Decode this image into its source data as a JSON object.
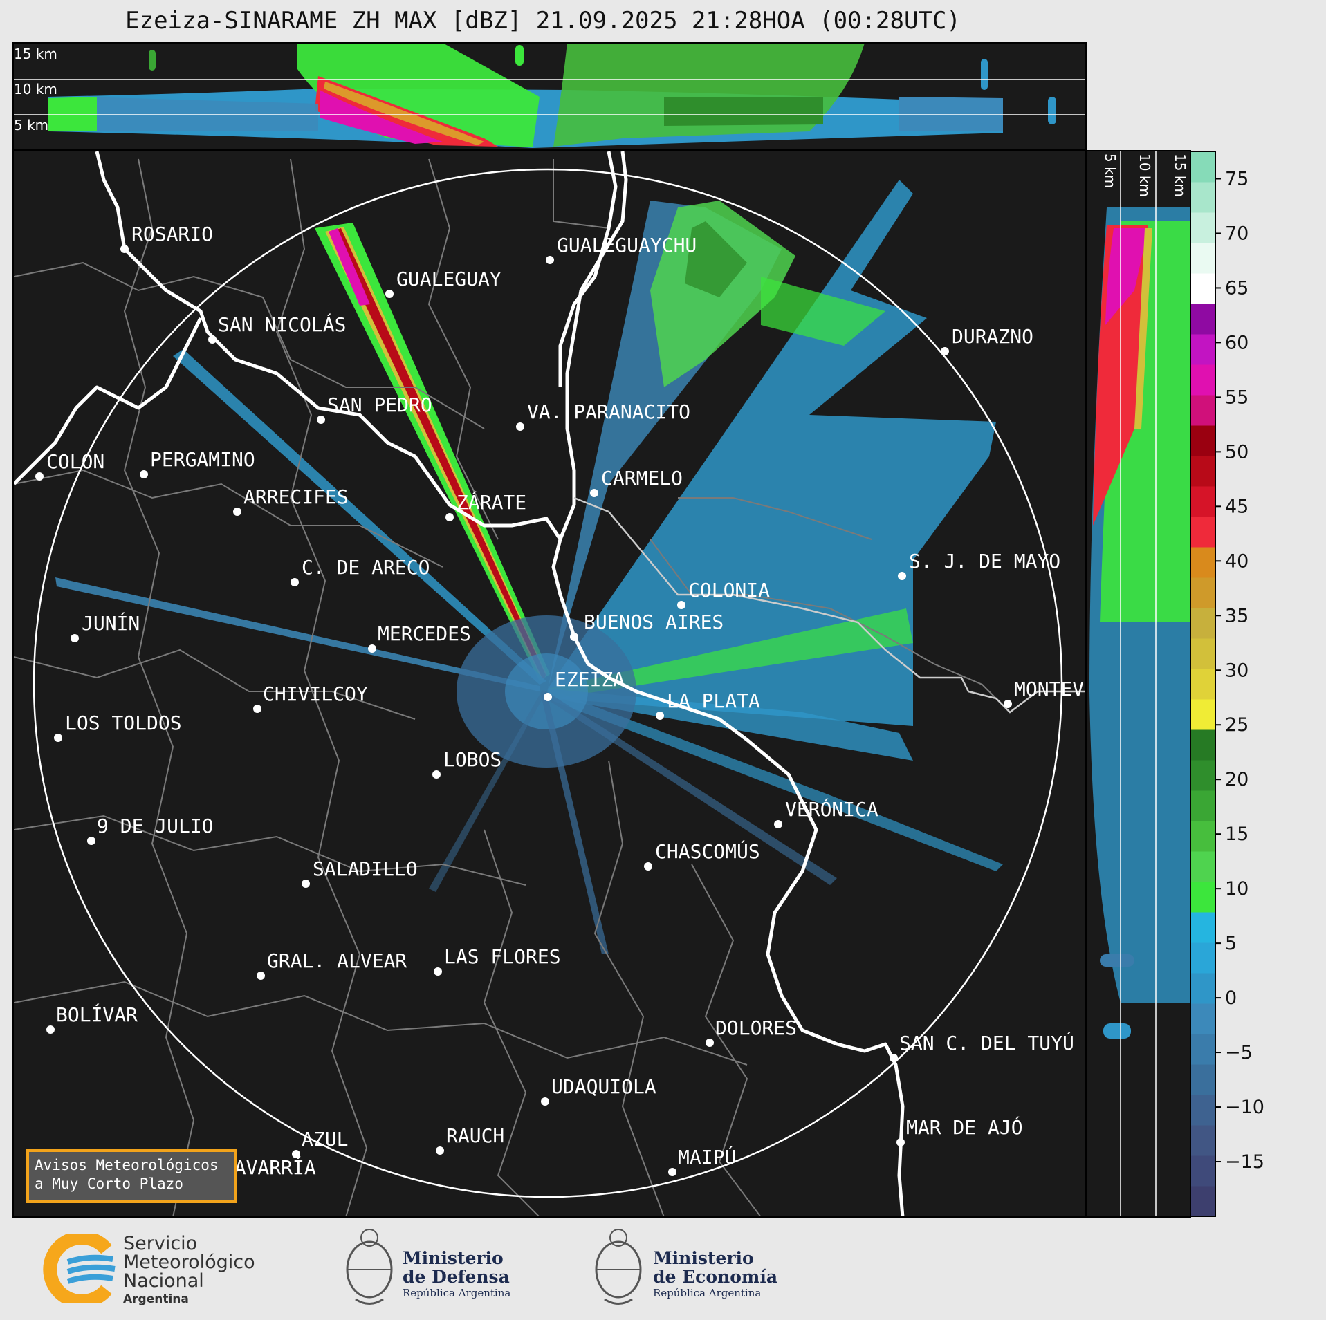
{
  "title": "Ezeiza-SINARAME ZH MAX [dBZ] 21.09.2025 21:28HOA (00:28UTC)",
  "top_panel": {
    "labels": [
      "15 km",
      "10 km",
      "5 km"
    ]
  },
  "side_panel": {
    "labels": [
      "5 km",
      "10 km",
      "15 km"
    ]
  },
  "colorbar": {
    "ticks": [
      "75",
      "70",
      "65",
      "60",
      "55",
      "50",
      "45",
      "40",
      "35",
      "30",
      "25",
      "20",
      "15",
      "10",
      "5",
      "0",
      "−5",
      "−10",
      "−15"
    ],
    "colors": [
      "#3d3f6e",
      "#3f4a7a",
      "#415684",
      "#3e6290",
      "#3a6f9c",
      "#3a7cab",
      "#3c89ba",
      "#2f96c8",
      "#2aa6d8",
      "#25b5e0",
      "#3ce63c",
      "#4fd34f",
      "#47be3d",
      "#3aa634",
      "#2f8e2c",
      "#267a24",
      "#f0ec35",
      "#e0d238",
      "#d2c03a",
      "#c7b03c",
      "#cf9a2a",
      "#d98a1c",
      "#ef2a3a",
      "#d61428",
      "#b80a18",
      "#9a0010",
      "#d0107a",
      "#e010b0",
      "#c214c2",
      "#8f0aa2",
      "#ffffff",
      "#eafaf2",
      "#c8f0de",
      "#a8e6cb",
      "#86dbb8"
    ],
    "colors_dbz_step": "2.5 dBZ from -17.5 to 70"
  },
  "cities": [
    {
      "name": "ROSARIO"
    },
    {
      "name": "GUALEGUAYCHU"
    },
    {
      "name": "GUALEGUAY"
    },
    {
      "name": "SAN NICOLÁS"
    },
    {
      "name": "DURAZNO"
    },
    {
      "name": "SAN PEDRO"
    },
    {
      "name": "VA. PARANACITO"
    },
    {
      "name": "COLON"
    },
    {
      "name": "PERGAMINO"
    },
    {
      "name": "CARMELO"
    },
    {
      "name": "ARRECIFES"
    },
    {
      "name": "ZÁRATE"
    },
    {
      "name": "S. J. DE MAYO"
    },
    {
      "name": "C. DE ARECO"
    },
    {
      "name": "COLONIA"
    },
    {
      "name": "JUNÍN"
    },
    {
      "name": "BUENOS AIRES"
    },
    {
      "name": "MERCEDES"
    },
    {
      "name": "EZEIZA"
    },
    {
      "name": "MONTEVIDEO"
    },
    {
      "name": "CHIVILCOY"
    },
    {
      "name": "LA PLATA"
    },
    {
      "name": "LOS TOLDOS"
    },
    {
      "name": "LOBOS"
    },
    {
      "name": "VERÓNICA"
    },
    {
      "name": "9 DE JULIO"
    },
    {
      "name": "CHASCOMÚS"
    },
    {
      "name": "SALADILLO"
    },
    {
      "name": "GRAL. ALVEAR"
    },
    {
      "name": "LAS FLORES"
    },
    {
      "name": "BOLÍVAR"
    },
    {
      "name": "DOLORES"
    },
    {
      "name": "SAN C. DEL TUYÚ"
    },
    {
      "name": "UDAQUIOLA"
    },
    {
      "name": "MAR DE AJÓ"
    },
    {
      "name": "AZUL"
    },
    {
      "name": "RAUCH"
    },
    {
      "name": "OLAVARRÍA"
    },
    {
      "name": "MAIPÚ"
    }
  ],
  "alert_box": {
    "line1": "Avisos Meteorológicos",
    "line2": "a Muy Corto Plazo"
  },
  "footer": {
    "smn": {
      "line1": "Servicio",
      "line2": "Meteorológico",
      "line3": "Nacional",
      "line4": "Argentina"
    },
    "defensa": {
      "line1": "Ministerio",
      "line2": "de Defensa",
      "line3": "República Argentina"
    },
    "economia": {
      "line1": "Ministerio",
      "line2": "de Economía",
      "line3": "República Argentina"
    }
  }
}
